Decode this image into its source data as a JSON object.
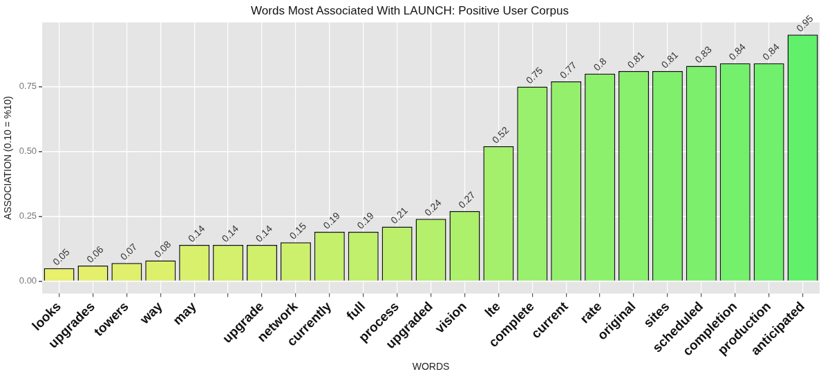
{
  "chart_data": {
    "type": "bar",
    "title": "Words Most Associated With LAUNCH: Positive User Corpus",
    "xlabel": "WORDS",
    "ylabel": "ASSOCIATION (0.10 = %10)",
    "categories": [
      "looks",
      "upgrades",
      "towers",
      "way",
      "may",
      null,
      "upgrade",
      "network",
      "currently",
      "full",
      "process",
      "upgraded",
      "vision",
      "lte",
      "complete",
      "current",
      "rate",
      "original",
      "sites",
      "scheduled",
      "completion",
      "production",
      "anticipated"
    ],
    "values": [
      0.05,
      0.06,
      0.07,
      0.08,
      0.14,
      0.14,
      0.14,
      0.15,
      0.19,
      0.19,
      0.21,
      0.24,
      0.27,
      0.52,
      0.75,
      0.77,
      0.8,
      0.81,
      0.81,
      0.83,
      0.84,
      0.84,
      0.95
    ],
    "colors": [
      "#e8f06c",
      "#e4f06c",
      "#e0f06c",
      "#dcf06c",
      "#d8f06c",
      "#d4f06c",
      "#d0f06c",
      "#ccf06c",
      "#c4f06c",
      "#c0f06c",
      "#bcf06c",
      "#b4f06c",
      "#acf06c",
      "#a4f06c",
      "#98f06c",
      "#94f06c",
      "#8cf06c",
      "#88f06c",
      "#80f06c",
      "#7cf06c",
      "#74f06c",
      "#70f06c",
      "#60f06a"
    ],
    "ylim": [
      -0.0475,
      0.9975
    ],
    "yticks": [
      {
        "value": 0,
        "label": "0.00"
      },
      0.25,
      {
        "value": 0.5,
        "label": "0.50"
      },
      0.75
    ],
    "grid": true,
    "legend": false,
    "data_labels": true
  }
}
